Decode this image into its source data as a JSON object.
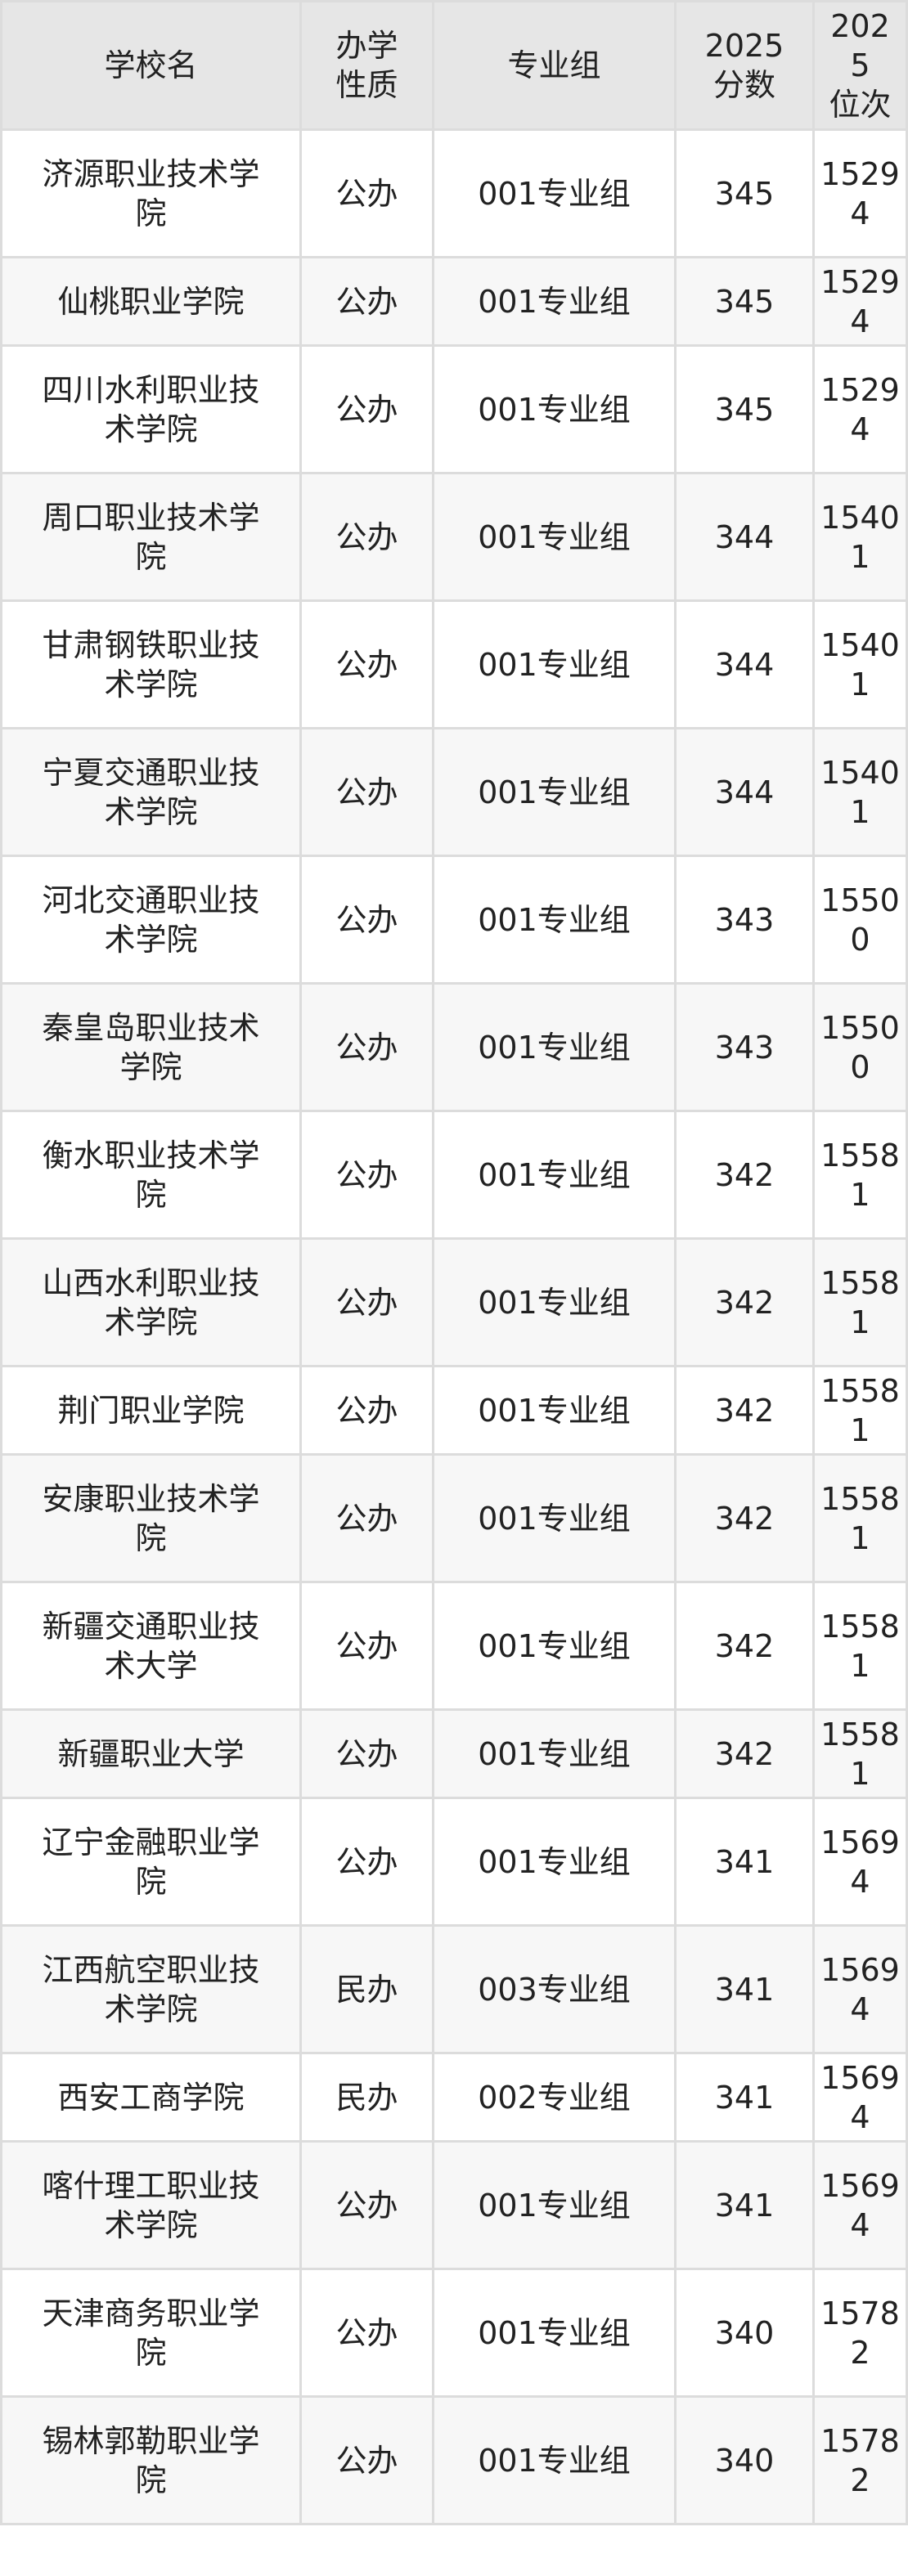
{
  "headers": [
    "学校名",
    "办学性质",
    "专业组",
    "2025分数",
    "2025位次"
  ],
  "header_lines": {
    "nature": [
      "办学",
      "性质"
    ],
    "score": [
      "2025",
      "分数"
    ],
    "rank": [
      "2025",
      "位次"
    ]
  },
  "rows": [
    {
      "school": "济源职业技术学院",
      "nature": "公办",
      "group": "001专业组",
      "score": "345",
      "rank": "15294"
    },
    {
      "school": "仙桃职业学院",
      "nature": "公办",
      "group": "001专业组",
      "score": "345",
      "rank": "15294"
    },
    {
      "school": "四川水利职业技术学院",
      "nature": "公办",
      "group": "001专业组",
      "score": "345",
      "rank": "15294"
    },
    {
      "school": "周口职业技术学院",
      "nature": "公办",
      "group": "001专业组",
      "score": "344",
      "rank": "15401"
    },
    {
      "school": "甘肃钢铁职业技术学院",
      "nature": "公办",
      "group": "001专业组",
      "score": "344",
      "rank": "15401"
    },
    {
      "school": "宁夏交通职业技术学院",
      "nature": "公办",
      "group": "001专业组",
      "score": "344",
      "rank": "15401"
    },
    {
      "school": "河北交通职业技术学院",
      "nature": "公办",
      "group": "001专业组",
      "score": "343",
      "rank": "15500"
    },
    {
      "school": "秦皇岛职业技术学院",
      "nature": "公办",
      "group": "001专业组",
      "score": "343",
      "rank": "15500"
    },
    {
      "school": "衡水职业技术学院",
      "nature": "公办",
      "group": "001专业组",
      "score": "342",
      "rank": "15581"
    },
    {
      "school": "山西水利职业技术学院",
      "nature": "公办",
      "group": "001专业组",
      "score": "342",
      "rank": "15581"
    },
    {
      "school": "荆门职业学院",
      "nature": "公办",
      "group": "001专业组",
      "score": "342",
      "rank": "15581"
    },
    {
      "school": "安康职业技术学院",
      "nature": "公办",
      "group": "001专业组",
      "score": "342",
      "rank": "15581"
    },
    {
      "school": "新疆交通职业技术大学",
      "nature": "公办",
      "group": "001专业组",
      "score": "342",
      "rank": "15581"
    },
    {
      "school": "新疆职业大学",
      "nature": "公办",
      "group": "001专业组",
      "score": "342",
      "rank": "15581"
    },
    {
      "school": "辽宁金融职业学院",
      "nature": "公办",
      "group": "001专业组",
      "score": "341",
      "rank": "15694"
    },
    {
      "school": "江西航空职业技术学院",
      "nature": "民办",
      "group": "003专业组",
      "score": "341",
      "rank": "15694"
    },
    {
      "school": "西安工商学院",
      "nature": "民办",
      "group": "002专业组",
      "score": "341",
      "rank": "15694"
    },
    {
      "school": "喀什理工职业技术学院",
      "nature": "公办",
      "group": "001专业组",
      "score": "341",
      "rank": "15694"
    },
    {
      "school": "天津商务职业学院",
      "nature": "公办",
      "group": "001专业组",
      "score": "340",
      "rank": "15782"
    },
    {
      "school": "锡林郭勒职业学院",
      "nature": "公办",
      "group": "001专业组",
      "score": "340",
      "rank": "15782"
    }
  ]
}
